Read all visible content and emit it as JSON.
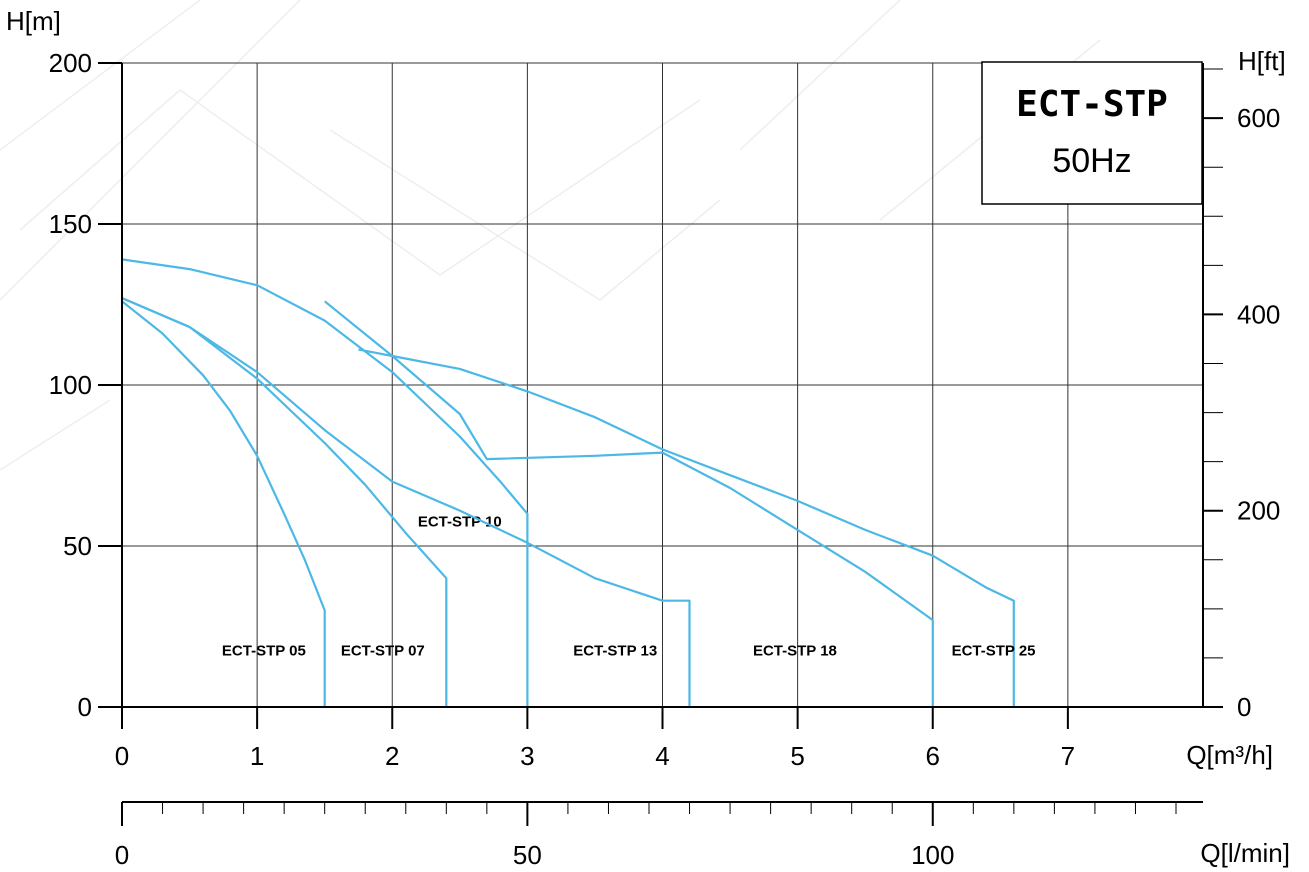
{
  "chart_data": {
    "type": "line",
    "title": "ECT-STP",
    "subtitle": "50Hz",
    "xlabel": "Q[m³/h]",
    "x2label": "Q[l/min]",
    "ylabel": "H[m]",
    "y2label": "H[ft]",
    "xlim": [
      0,
      8
    ],
    "ylim": [
      0,
      200
    ],
    "x2lim": [
      0,
      133.33
    ],
    "y2lim": [
      0,
      656.17
    ],
    "grid": true,
    "x_ticks": [
      0,
      1,
      2,
      3,
      4,
      5,
      6,
      7
    ],
    "y_ticks": [
      0,
      50,
      100,
      150,
      200
    ],
    "x2_tick_labels": [
      0,
      50,
      100
    ],
    "x2_minor_step": 5,
    "y2_tick_labels": [
      0,
      200,
      400,
      600
    ],
    "y2_minor_step": 50,
    "series": [
      {
        "name": "ECT-STP 05",
        "color": "#4bb8e6",
        "points": [
          [
            0,
            126
          ],
          [
            0.3,
            116
          ],
          [
            0.6,
            103
          ],
          [
            0.8,
            92
          ],
          [
            1.0,
            78
          ],
          [
            1.2,
            60
          ],
          [
            1.35,
            46
          ],
          [
            1.5,
            30
          ],
          [
            1.5,
            0
          ]
        ],
        "label_at": [
          1.05,
          16
        ]
      },
      {
        "name": "ECT-STP 07",
        "color": "#4bb8e6",
        "points": [
          [
            0,
            127
          ],
          [
            0.5,
            118
          ],
          [
            1.0,
            102
          ],
          [
            1.5,
            82
          ],
          [
            1.8,
            69
          ],
          [
            2.1,
            54
          ],
          [
            2.4,
            40
          ],
          [
            2.4,
            0
          ]
        ],
        "label_at": [
          1.93,
          16
        ]
      },
      {
        "name": "ECT-STP 10",
        "color": "#4bb8e6",
        "points": [
          [
            0,
            139
          ],
          [
            0.5,
            136
          ],
          [
            1.0,
            131
          ],
          [
            1.5,
            120
          ],
          [
            2.0,
            104
          ],
          [
            2.5,
            84
          ],
          [
            2.8,
            70
          ],
          [
            3.0,
            60
          ],
          [
            3.0,
            0
          ]
        ],
        "label_at": [
          2.5,
          56
        ]
      },
      {
        "name": "ECT-STP 13",
        "color": "#4bb8e6",
        "points": [
          [
            0,
            127
          ],
          [
            0.5,
            118
          ],
          [
            1.0,
            104
          ],
          [
            1.5,
            86
          ],
          [
            2.0,
            70
          ],
          [
            2.5,
            61
          ],
          [
            3.0,
            51
          ],
          [
            3.5,
            40
          ],
          [
            4.0,
            33
          ],
          [
            4.2,
            33
          ],
          [
            4.2,
            0
          ]
        ],
        "label_at": [
          3.65,
          16
        ]
      },
      {
        "name": "ECT-STP 18",
        "color": "#4bb8e6",
        "points": [
          [
            1.5,
            126
          ],
          [
            2.0,
            109
          ],
          [
            2.5,
            91
          ],
          [
            2.7,
            77
          ],
          [
            3.5,
            78
          ],
          [
            4.0,
            79
          ],
          [
            4.5,
            68
          ],
          [
            5.0,
            55
          ],
          [
            5.5,
            42
          ],
          [
            6.0,
            27
          ],
          [
            6.0,
            0
          ]
        ],
        "label_at": [
          4.98,
          16
        ]
      },
      {
        "name": "ECT-STP 25",
        "color": "#4bb8e6",
        "points": [
          [
            1.75,
            111
          ],
          [
            2.0,
            109
          ],
          [
            2.5,
            105
          ],
          [
            3.0,
            98
          ],
          [
            3.5,
            90
          ],
          [
            4.0,
            80
          ],
          [
            4.5,
            72
          ],
          [
            5.0,
            64
          ],
          [
            5.5,
            55
          ],
          [
            6.0,
            47
          ],
          [
            6.4,
            37
          ],
          [
            6.6,
            33
          ],
          [
            6.6,
            27
          ],
          [
            6.6,
            0
          ]
        ],
        "label_at": [
          6.45,
          16
        ]
      }
    ]
  }
}
